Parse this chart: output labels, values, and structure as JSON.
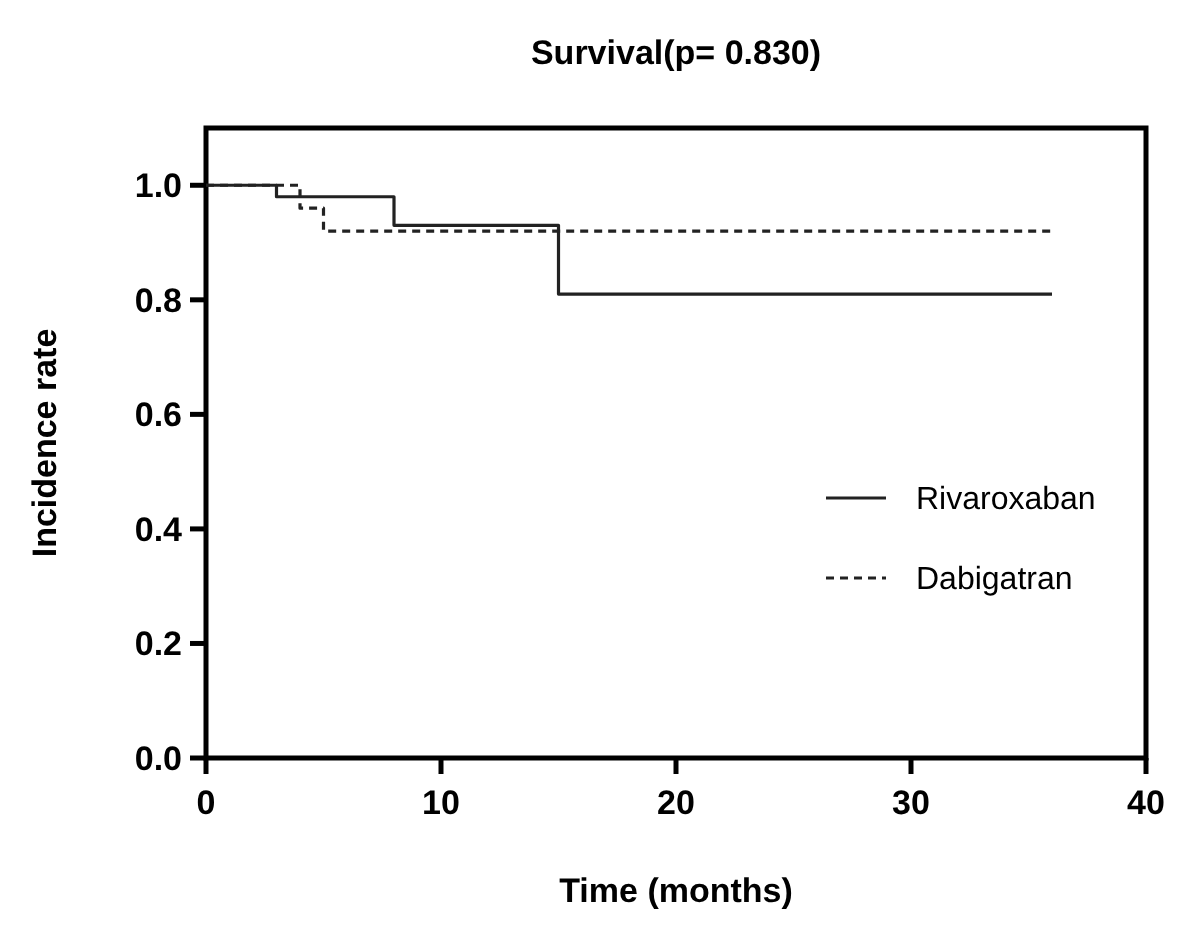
{
  "chart_data": {
    "type": "step",
    "title": "Survival(p= 0.830)",
    "xlabel": "Time (months)",
    "ylabel": "Incidence rate",
    "xlim": [
      0,
      40
    ],
    "xticks": [
      0,
      10,
      20,
      30,
      40
    ],
    "ylim": [
      0,
      1.1
    ],
    "yticks": [
      {
        "value": 0,
        "label": "0.0"
      },
      {
        "value": 0.2,
        "label": "0.2"
      },
      {
        "value": 0.4,
        "label": "0.4"
      },
      {
        "value": 0.6,
        "label": "0.6"
      },
      {
        "value": 0.8,
        "label": "0.8"
      },
      {
        "value": 1,
        "label": "1.0"
      }
    ],
    "grid": false,
    "legend": "bottom right",
    "series": [
      {
        "name": "Rivaroxaban",
        "color": "#222222",
        "line_style": "solid",
        "x": [
          0,
          3,
          8,
          15,
          36
        ],
        "values": [
          1,
          0.98,
          0.93,
          0.81,
          0.81
        ]
      },
      {
        "name": "Dabigatran",
        "color": "#222222",
        "line_style": "dashed",
        "x": [
          0,
          4,
          5,
          36
        ],
        "values": [
          1,
          0.96,
          0.92,
          0.92
        ]
      }
    ]
  }
}
